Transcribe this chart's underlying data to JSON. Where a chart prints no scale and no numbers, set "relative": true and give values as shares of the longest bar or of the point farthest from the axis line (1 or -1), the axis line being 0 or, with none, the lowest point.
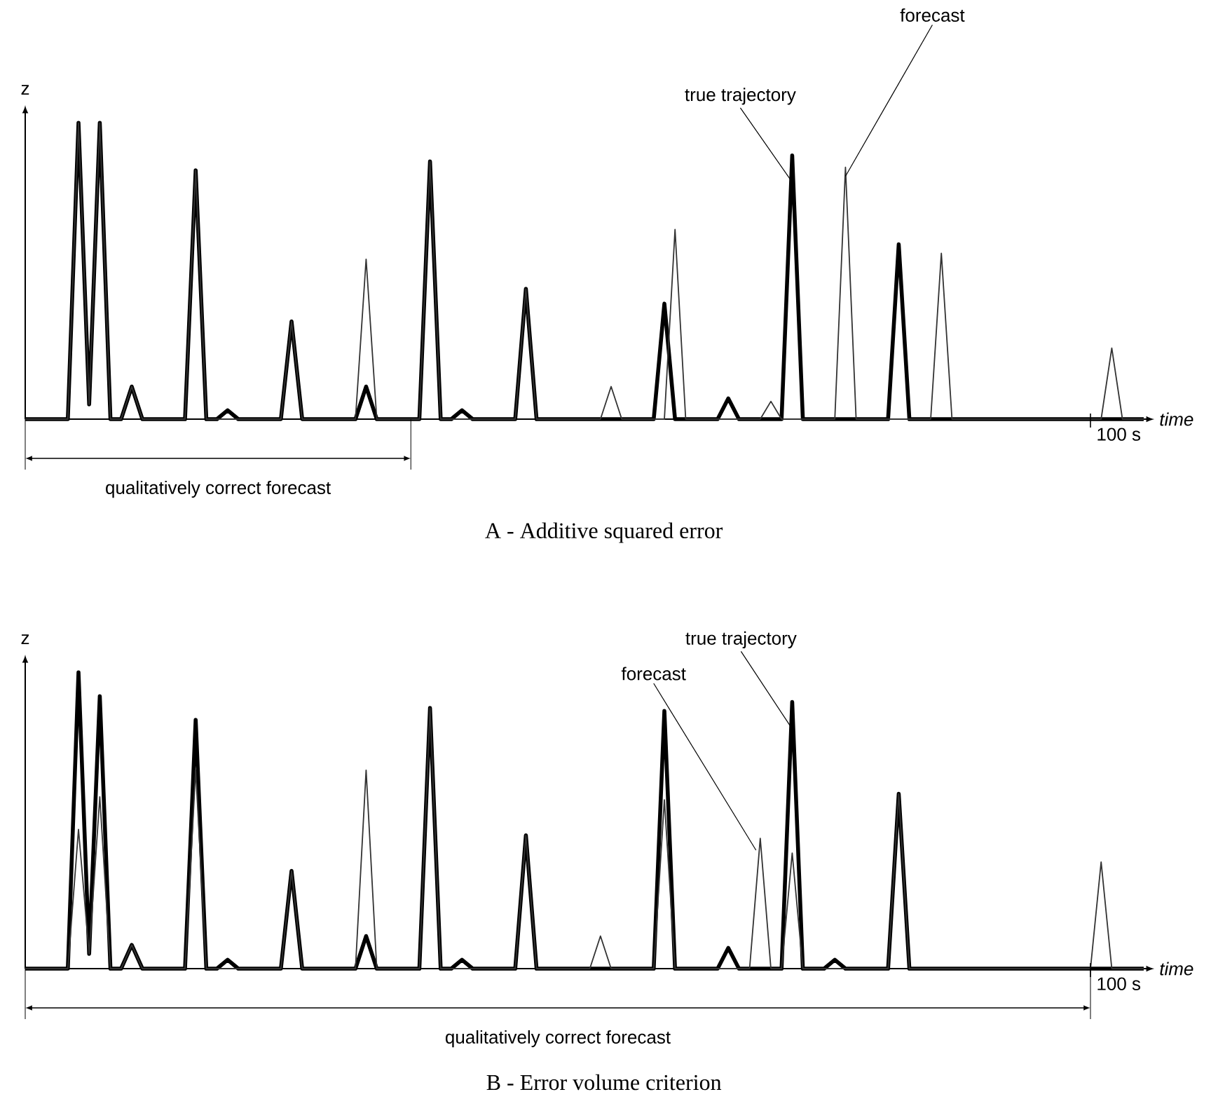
{
  "chart_data": [
    {
      "type": "line",
      "title": "A - Additive squared error",
      "xlabel": "time",
      "ylabel": "z",
      "relative": true,
      "categories": [
        null,
        null,
        null,
        null,
        null,
        null,
        null,
        null,
        null,
        null,
        null,
        null,
        null,
        null,
        null,
        null,
        null,
        null,
        null,
        null,
        null,
        null,
        null,
        null,
        null,
        null,
        null,
        null,
        null,
        null,
        null,
        null,
        null,
        null,
        null,
        null,
        null,
        null,
        null,
        null,
        null,
        null,
        null,
        null,
        null,
        null,
        null,
        null,
        null,
        null,
        null,
        null,
        null,
        null,
        null,
        null,
        null,
        null,
        null,
        null,
        null,
        null,
        null,
        null,
        null,
        null,
        null,
        null,
        null,
        null,
        null,
        null,
        null,
        null,
        null,
        null,
        null,
        null,
        null,
        null,
        null,
        null,
        null,
        null,
        null,
        null,
        null,
        null,
        null,
        null,
        null,
        null,
        null,
        null,
        null,
        null,
        null,
        null,
        null,
        null,
        null,
        null,
        null,
        null,
        null,
        null
      ],
      "series": [
        {
          "color": "#000000",
          "values": [
            0,
            0,
            0,
            0,
            0,
            1,
            0.05,
            1,
            0,
            0,
            0.11,
            0,
            0,
            0,
            0,
            0,
            0.84,
            0,
            0,
            0.03,
            0,
            0,
            0,
            0,
            0,
            0.33,
            0,
            0,
            0,
            0,
            0,
            0,
            0.11,
            0,
            0,
            0,
            0,
            0,
            0.87,
            0,
            0,
            0.03,
            0,
            0,
            0,
            0,
            0,
            0.44,
            0,
            0,
            0,
            0,
            0,
            0,
            0,
            0,
            0,
            0,
            0,
            0,
            0.39,
            0,
            0,
            0,
            0,
            0,
            0.07,
            0,
            0,
            0,
            0,
            0,
            0.89,
            0,
            0,
            0,
            0,
            0,
            0,
            0,
            0,
            0,
            0.59,
            0,
            0,
            0,
            0,
            0,
            0,
            0,
            0,
            0,
            0,
            0,
            0,
            0,
            0,
            0,
            0,
            0,
            0,
            0,
            0,
            0,
            0,
            0
          ]
        },
        {
          "color": "#333333",
          "values": [
            0,
            0,
            0,
            0,
            0,
            1,
            0.05,
            1,
            0,
            0,
            0.11,
            0,
            0,
            0,
            0,
            0,
            0.84,
            0,
            0,
            0,
            0,
            0,
            0,
            0,
            0,
            0.33,
            0,
            0,
            0,
            0,
            0,
            0,
            0.54,
            0,
            0,
            0,
            0,
            0,
            0.87,
            0,
            0,
            0,
            0,
            0,
            0,
            0,
            0,
            0.44,
            0,
            0,
            0,
            0,
            0,
            0,
            0,
            0.11,
            0,
            0,
            0,
            0,
            0,
            0.64,
            0,
            0,
            0,
            0,
            0,
            0,
            0,
            0,
            0.06,
            0,
            0,
            0,
            0,
            0,
            0,
            0.85,
            0,
            0,
            0,
            0,
            0,
            0,
            0,
            0,
            0.56,
            0,
            0,
            0,
            0,
            0,
            0,
            0,
            0,
            0,
            0,
            0,
            0,
            0,
            0,
            0,
            0.24,
            0,
            0,
            0
          ]
        }
      ],
      "annotations": [
        "true trajectory",
        "forecast",
        "100 s",
        "qualitatively correct forecast"
      ]
    },
    {
      "type": "line",
      "title": "B - Error volume criterion",
      "xlabel": "time",
      "ylabel": "z",
      "relative": true,
      "categories": [
        null,
        null,
        null,
        null,
        null,
        null,
        null,
        null,
        null,
        null,
        null,
        null,
        null,
        null,
        null,
        null,
        null,
        null,
        null,
        null,
        null,
        null,
        null,
        null,
        null,
        null,
        null,
        null,
        null,
        null,
        null,
        null,
        null,
        null,
        null,
        null,
        null,
        null,
        null,
        null,
        null,
        null,
        null,
        null,
        null,
        null,
        null,
        null,
        null,
        null,
        null,
        null,
        null,
        null,
        null,
        null,
        null,
        null,
        null,
        null,
        null,
        null,
        null,
        null,
        null,
        null,
        null,
        null,
        null,
        null,
        null,
        null,
        null,
        null,
        null,
        null,
        null,
        null,
        null,
        null,
        null,
        null,
        null,
        null,
        null,
        null,
        null,
        null,
        null,
        null,
        null,
        null,
        null,
        null,
        null,
        null,
        null,
        null,
        null,
        null,
        null,
        null,
        null,
        null,
        null,
        null
      ],
      "series": [
        {
          "color": "#000000",
          "values": [
            0,
            0,
            0,
            0,
            0,
            1,
            0.05,
            0.92,
            0,
            0,
            0.08,
            0,
            0,
            0,
            0,
            0,
            0.84,
            0,
            0,
            0.03,
            0,
            0,
            0,
            0,
            0,
            0.33,
            0,
            0,
            0,
            0,
            0,
            0,
            0.11,
            0,
            0,
            0,
            0,
            0,
            0.88,
            0,
            0,
            0.03,
            0,
            0,
            0,
            0,
            0,
            0.45,
            0,
            0,
            0,
            0,
            0,
            0,
            0,
            0,
            0,
            0,
            0,
            0,
            0.87,
            0,
            0,
            0,
            0,
            0,
            0.07,
            0,
            0,
            0,
            0,
            0,
            0.9,
            0,
            0,
            0,
            0.03,
            0,
            0,
            0,
            0,
            0,
            0.59,
            0,
            0,
            0,
            0,
            0,
            0,
            0,
            0,
            0,
            0,
            0,
            0,
            0,
            0,
            0,
            0,
            0,
            0,
            0,
            0,
            0,
            0,
            0
          ]
        },
        {
          "color": "#333333",
          "values": [
            0,
            0,
            0,
            0,
            0,
            0.47,
            0.05,
            0.58,
            0,
            0,
            0.08,
            0,
            0,
            0,
            0,
            0,
            0.67,
            0,
            0,
            0,
            0,
            0,
            0,
            0,
            0,
            0.33,
            0,
            0,
            0,
            0,
            0,
            0,
            0.67,
            0,
            0,
            0,
            0,
            0,
            0.88,
            0,
            0,
            0,
            0,
            0,
            0,
            0,
            0,
            0.45,
            0,
            0,
            0,
            0,
            0,
            0,
            0.11,
            0,
            0,
            0,
            0,
            0,
            0.57,
            0,
            0,
            0,
            0,
            0,
            0,
            0,
            0,
            0.44,
            0,
            0,
            0.39,
            0,
            0,
            0,
            0,
            0,
            0,
            0,
            0,
            0,
            0.59,
            0,
            0,
            0,
            0,
            0,
            0,
            0,
            0,
            0,
            0,
            0,
            0,
            0,
            0,
            0,
            0,
            0,
            0,
            0.36,
            0,
            0,
            0,
            0
          ]
        }
      ],
      "annotations": [
        "forecast",
        "true trajectory",
        "100 s",
        "qualitatively correct forecast"
      ]
    }
  ]
}
